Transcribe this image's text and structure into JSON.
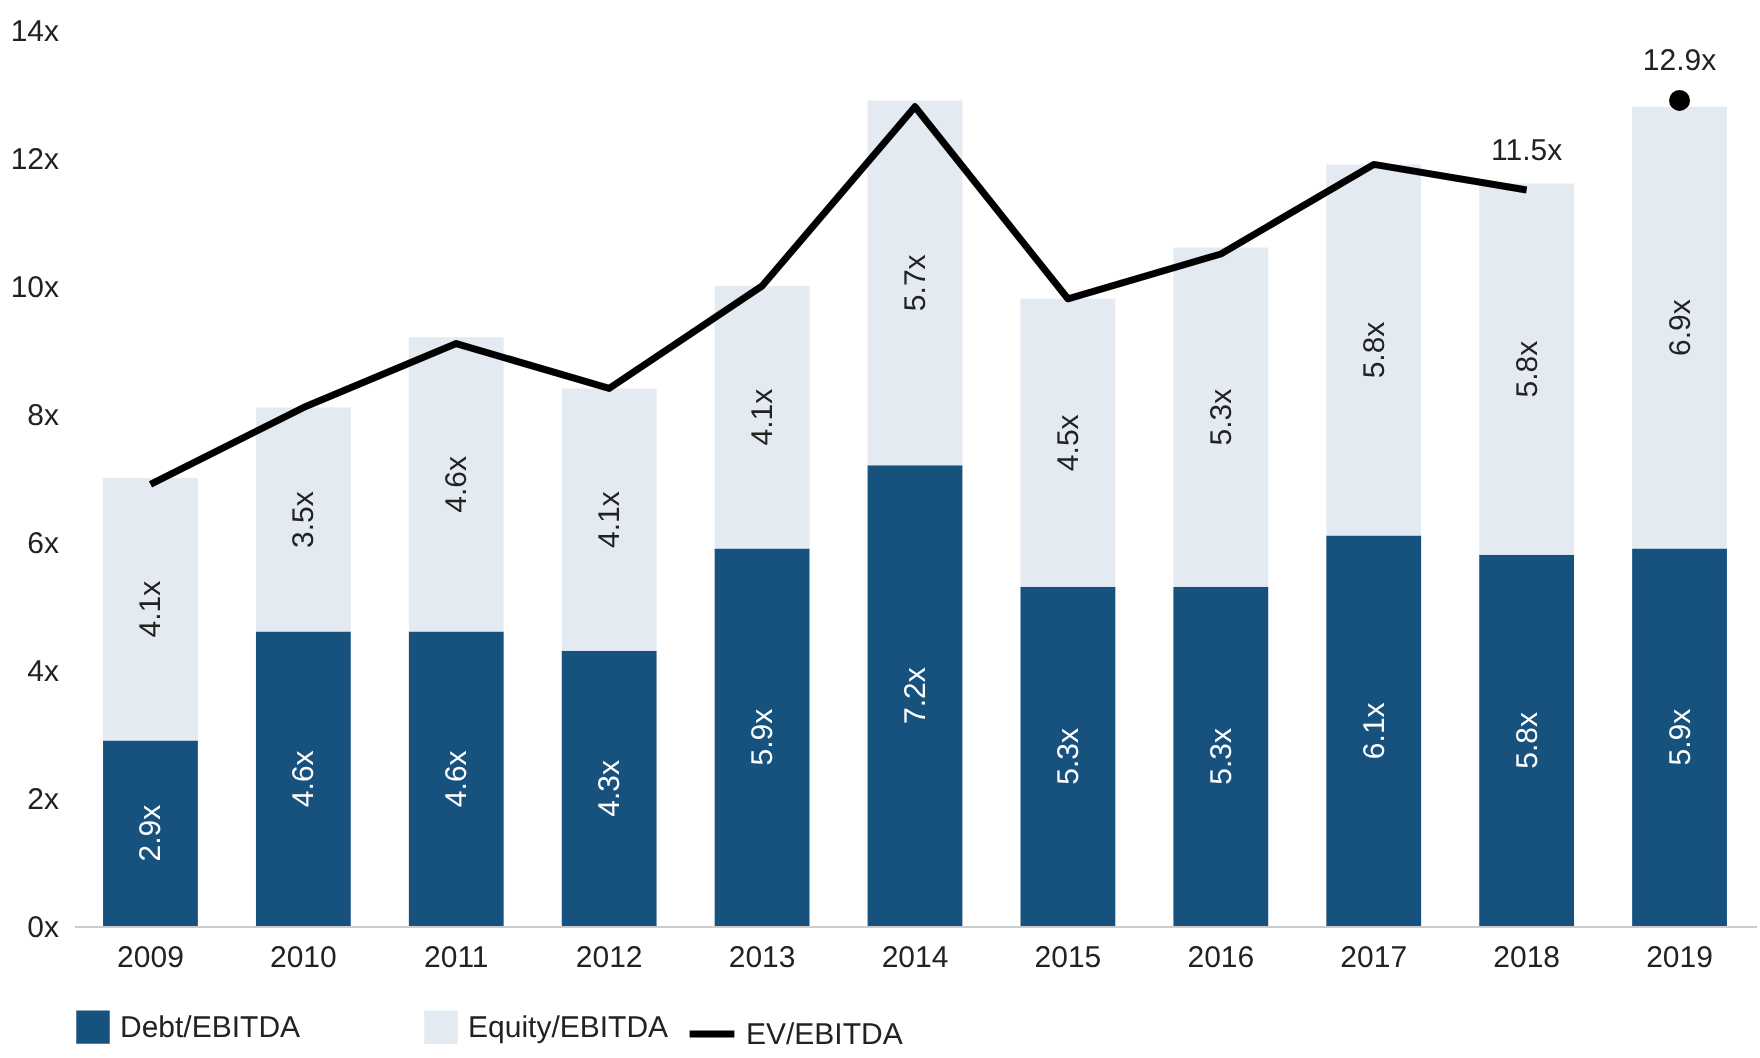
{
  "chart_data": {
    "type": "bar",
    "stacked": true,
    "categories": [
      "2009",
      "2010",
      "2011",
      "2012",
      "2013",
      "2014",
      "2015",
      "2016",
      "2017",
      "2018",
      "2019"
    ],
    "ylim": [
      0,
      14
    ],
    "yticks": [
      {
        "value": 0,
        "label": "0x"
      },
      {
        "value": 2,
        "label": "2x"
      },
      {
        "value": 4,
        "label": "4x"
      },
      {
        "value": 6,
        "label": "6x"
      },
      {
        "value": 8,
        "label": "8x"
      },
      {
        "value": 10,
        "label": "10x"
      },
      {
        "value": 12,
        "label": "12x"
      },
      {
        "value": 14,
        "label": "14x"
      }
    ],
    "grid": false,
    "legend": "bottom",
    "series": [
      {
        "name": "Debt/EBITDA",
        "color": "#17527f",
        "values": [
          2.9,
          4.6,
          4.6,
          4.3,
          5.9,
          7.2,
          5.3,
          5.3,
          6.1,
          5.8,
          5.9
        ],
        "value_labels": [
          "2.9x",
          "4.6x",
          "4.6x",
          "4.3x",
          "5.9x",
          "7.2x",
          "5.3x",
          "5.3x",
          "6.1x",
          "5.8x",
          "5.9x"
        ]
      },
      {
        "name": "Equity/EBITDA",
        "color": "#e3eaf1",
        "values": [
          4.1,
          3.5,
          4.6,
          4.1,
          4.1,
          5.7,
          4.5,
          5.3,
          5.8,
          5.8,
          6.9
        ],
        "value_labels": [
          "4.1x",
          "3.5x",
          "4.6x",
          "4.1x",
          "4.1x",
          "5.7x",
          "4.5x",
          "5.3x",
          "5.8x",
          "5.8x",
          "6.9x"
        ]
      },
      {
        "name": "EV/EBITDA",
        "type": "line",
        "color": "#000000",
        "values": [
          6.9,
          8.1,
          9.1,
          8.4,
          10.0,
          12.8,
          9.8,
          10.5,
          11.9,
          11.5,
          null
        ],
        "value_labels": [
          null,
          null,
          null,
          null,
          null,
          null,
          null,
          null,
          null,
          "11.5x",
          null
        ]
      },
      {
        "type": "scatter",
        "color": "#000000",
        "values": [
          null,
          null,
          null,
          null,
          null,
          null,
          null,
          null,
          null,
          null,
          12.9
        ],
        "value_labels": [
          null,
          null,
          null,
          null,
          null,
          null,
          null,
          null,
          null,
          null,
          "12.9x"
        ]
      }
    ]
  }
}
